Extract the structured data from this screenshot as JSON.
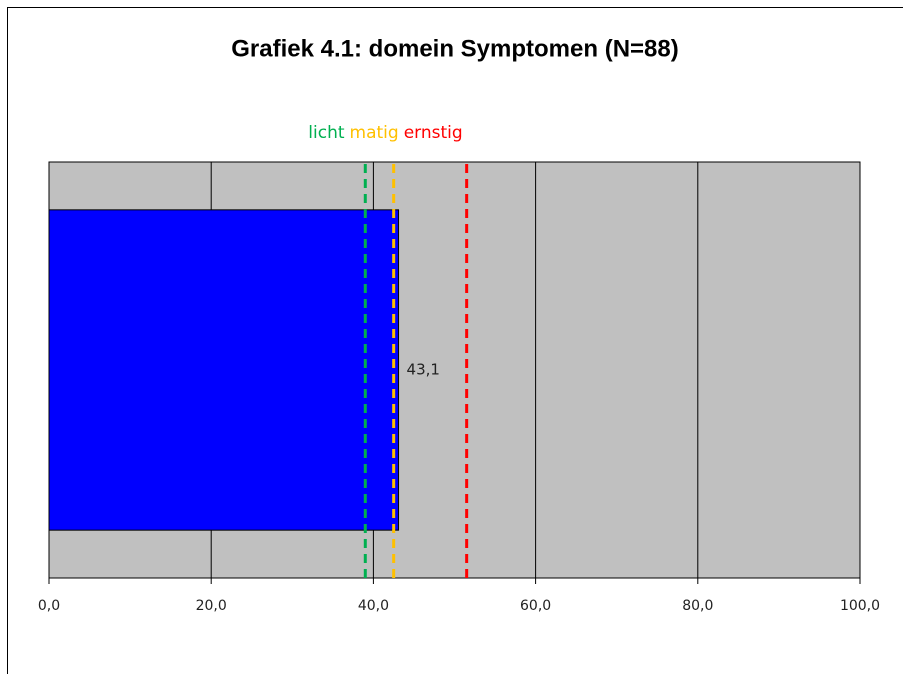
{
  "chart_data": {
    "type": "hbar",
    "title": "Grafiek 4.1: domein Symptomen (N=88)",
    "values": [
      43.1
    ],
    "value_labels": [
      "43,1"
    ],
    "color": "#0000ff",
    "xlim": [
      0,
      100
    ],
    "xticks": [
      {
        "value": 0,
        "label": "0,0"
      },
      {
        "value": 20,
        "label": "20,0"
      },
      {
        "value": 40,
        "label": "40,0"
      },
      {
        "value": 60,
        "label": "60,0"
      },
      {
        "value": 80,
        "label": "80,0"
      },
      {
        "value": 100,
        "label": "100,0"
      }
    ],
    "grid": true,
    "reference_lines": [
      {
        "name": "licht",
        "value": 39,
        "color": "#00b050"
      },
      {
        "name": "matig",
        "value": 42.5,
        "color": "#ffc000"
      },
      {
        "name": "ernstig",
        "value": 51.5,
        "color": "#ff0000"
      }
    ]
  }
}
